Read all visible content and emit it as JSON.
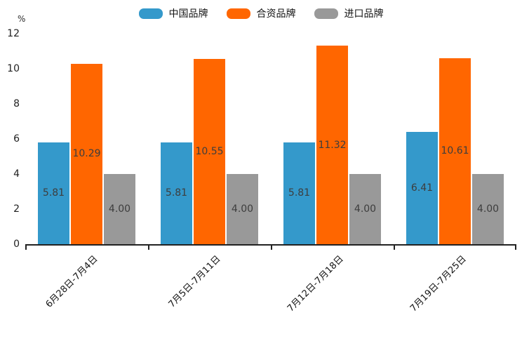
{
  "chart_data": {
    "type": "bar",
    "title": "",
    "ylabel": "%",
    "xlabel": "",
    "ylim": [
      0,
      12
    ],
    "yticks": [
      0,
      2,
      4,
      6,
      8,
      10,
      12
    ],
    "grid": false,
    "legend_position": "top",
    "bar_label_decimals": 2,
    "categories": [
      "6月28日-7月4日",
      "7月5日-7月11日",
      "7月12日-7月18日",
      "7月19日-7月25日"
    ],
    "series": [
      {
        "name": "中国品牌",
        "color": "#3499cb",
        "values": [
          5.81,
          5.81,
          5.81,
          6.41
        ]
      },
      {
        "name": "合资品牌",
        "color": "#ff6600",
        "values": [
          10.29,
          10.55,
          11.32,
          10.61
        ]
      },
      {
        "name": "进口品牌",
        "color": "#999999",
        "values": [
          4.0,
          4.0,
          4.0,
          4.0
        ]
      }
    ],
    "value_label_color": "#3d3d3d",
    "axis_color": "#222222"
  }
}
